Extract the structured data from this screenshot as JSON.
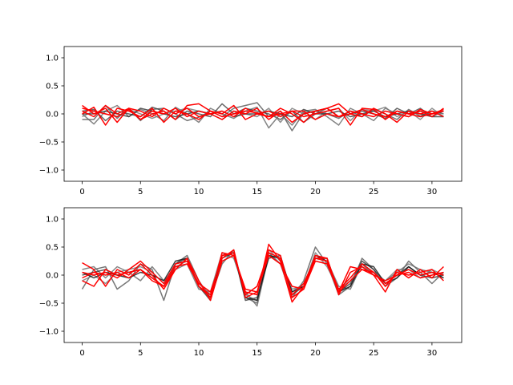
{
  "chart_data": [
    {
      "type": "line",
      "title": "",
      "xlabel": "",
      "ylabel": "",
      "xlim": [
        -1.55,
        32.55
      ],
      "ylim": [
        -1.2,
        1.2
      ],
      "xticks": [
        0,
        5,
        10,
        15,
        20,
        25,
        30
      ],
      "yticks": [
        -1.0,
        -0.5,
        0.0,
        0.5,
        1.0
      ],
      "xtick_labels": [
        "0",
        "5",
        "10",
        "15",
        "20",
        "25",
        "30"
      ],
      "ytick_labels": [
        "−1.0",
        "−0.5",
        "0.0",
        "0.5",
        "1.0"
      ],
      "grid": false,
      "x": [
        0,
        1,
        2,
        3,
        4,
        5,
        6,
        7,
        8,
        9,
        10,
        11,
        12,
        13,
        14,
        15,
        16,
        17,
        18,
        19,
        20,
        21,
        22,
        23,
        24,
        25,
        26,
        27,
        28,
        29,
        30,
        31
      ],
      "series": [
        {
          "color": "#555555",
          "values": [
            -0.1,
            -0.1,
            0.15,
            -0.08,
            0.1,
            -0.12,
            0.08,
            0.1,
            0.0,
            -0.12,
            -0.06,
            0.05,
            -0.05,
            0.1,
            0.15,
            0.2,
            -0.05,
            0.05,
            -0.3,
            0.02,
            0.05,
            0.0,
            -0.08,
            0.05,
            -0.05,
            0.08,
            0.0,
            -0.1,
            0.08,
            -0.04,
            0.05,
            0.0
          ]
        },
        {
          "color": "#666666",
          "values": [
            0.0,
            -0.18,
            0.05,
            0.15,
            -0.05,
            0.08,
            0.0,
            -0.12,
            0.12,
            0.0,
            -0.15,
            0.1,
            0.0,
            -0.08,
            0.05,
            0.12,
            -0.25,
            0.0,
            -0.2,
            0.05,
            0.08,
            -0.05,
            -0.2,
            0.1,
            0.0,
            -0.12,
            0.1,
            0.0,
            -0.05,
            0.05,
            0.0,
            0.05
          ]
        },
        {
          "color": "#444444",
          "values": [
            0.05,
            0.08,
            -0.12,
            0.05,
            0.0,
            -0.05,
            0.12,
            0.05,
            -0.1,
            0.05,
            0.0,
            -0.05,
            0.18,
            0.0,
            0.1,
            0.05,
            0.0,
            -0.1,
            0.05,
            -0.15,
            0.0,
            0.1,
            -0.05,
            0.0,
            0.05,
            0.0,
            -0.08,
            0.1,
            0.0,
            0.1,
            -0.05,
            0.05
          ]
        },
        {
          "color": "#777777",
          "values": [
            -0.05,
            0.05,
            0.0,
            -0.05,
            0.08,
            0.0,
            -0.08,
            0.0,
            0.05,
            0.1,
            0.05,
            0.0,
            -0.1,
            0.05,
            0.0,
            -0.05,
            0.1,
            -0.15,
            0.1,
            0.0,
            -0.1,
            0.05,
            0.1,
            -0.12,
            0.08,
            0.05,
            0.12,
            -0.05,
            0.05,
            -0.1,
            0.1,
            -0.05
          ]
        },
        {
          "color": "#333333",
          "values": [
            0.0,
            0.0,
            0.05,
            0.0,
            -0.05,
            0.1,
            0.05,
            0.0,
            -0.05,
            0.0,
            0.05,
            0.0,
            0.05,
            -0.05,
            0.0,
            0.0,
            0.05,
            0.0,
            -0.05,
            0.08,
            0.0,
            0.0,
            0.05,
            -0.05,
            0.0,
            0.05,
            -0.05,
            0.0,
            0.05,
            0.0,
            -0.05,
            -0.05
          ]
        },
        {
          "color": "#ff0000",
          "values": [
            0.15,
            0.0,
            0.1,
            -0.15,
            0.1,
            -0.1,
            0.0,
            0.05,
            -0.1,
            0.15,
            0.18,
            0.05,
            -0.05,
            0.0,
            0.05,
            0.02,
            -0.05,
            0.0,
            0.05,
            -0.05,
            0.0,
            0.05,
            0.1,
            -0.2,
            0.1,
            0.08,
            -0.1,
            0.05,
            0.0,
            0.05,
            -0.05,
            0.1
          ]
        },
        {
          "color": "#ff0000",
          "values": [
            0.0,
            0.12,
            -0.2,
            0.1,
            0.05,
            -0.05,
            0.1,
            -0.15,
            0.05,
            0.0,
            -0.1,
            0.05,
            0.0,
            0.15,
            -0.1,
            0.0,
            -0.05,
            0.1,
            0.0,
            -0.15,
            0.05,
            0.1,
            0.18,
            0.0,
            -0.05,
            0.1,
            0.0,
            -0.15,
            0.05,
            0.0,
            0.05,
            -0.05
          ]
        },
        {
          "color": "#ff0000",
          "values": [
            0.05,
            -0.05,
            0.15,
            0.0,
            0.1,
            0.05,
            -0.05,
            0.1,
            0.0,
            0.1,
            -0.05,
            0.0,
            0.05,
            -0.05,
            0.1,
            0.0,
            0.05,
            -0.05,
            0.05,
            0.05,
            -0.1,
            0.0,
            -0.05,
            0.05,
            0.0,
            -0.05,
            0.05,
            0.0,
            -0.05,
            0.08,
            0.0,
            0.05
          ]
        },
        {
          "color": "#ff0000",
          "values": [
            0.1,
            0.05,
            0.0,
            -0.05,
            0.08,
            -0.1,
            0.05,
            0.0,
            0.1,
            -0.05,
            0.05,
            0.0,
            -0.1,
            0.05,
            0.0,
            0.1,
            -0.1,
            0.05,
            -0.15,
            0.0,
            0.05,
            0.1,
            -0.05,
            0.0,
            0.08,
            0.0,
            -0.05,
            0.05,
            0.0,
            -0.05,
            0.0,
            0.08
          ]
        }
      ]
    },
    {
      "type": "line",
      "title": "",
      "xlabel": "",
      "ylabel": "",
      "xlim": [
        -1.55,
        32.55
      ],
      "ylim": [
        -1.2,
        1.2
      ],
      "xticks": [
        0,
        5,
        10,
        15,
        20,
        25,
        30
      ],
      "yticks": [
        -1.0,
        -0.5,
        0.0,
        0.5,
        1.0
      ],
      "xtick_labels": [
        "0",
        "5",
        "10",
        "15",
        "20",
        "25",
        "30"
      ],
      "ytick_labels": [
        "−1.0",
        "−0.5",
        "0.0",
        "0.5",
        "1.0"
      ],
      "grid": false,
      "x": [
        0,
        1,
        2,
        3,
        4,
        5,
        6,
        7,
        8,
        9,
        10,
        11,
        12,
        13,
        14,
        15,
        16,
        17,
        18,
        19,
        20,
        21,
        22,
        23,
        24,
        25,
        26,
        27,
        28,
        29,
        30,
        31
      ],
      "series": [
        {
          "color": "#555555",
          "values": [
            -0.25,
            0.1,
            0.15,
            -0.25,
            -0.1,
            0.2,
            0.1,
            -0.45,
            0.2,
            0.35,
            -0.1,
            -0.4,
            0.2,
            0.45,
            -0.4,
            -0.5,
            0.4,
            0.2,
            -0.4,
            -0.1,
            0.5,
            0.2,
            -0.35,
            -0.2,
            0.3,
            0.1,
            -0.2,
            -0.05,
            0.25,
            0.05,
            -0.15,
            0.05
          ]
        },
        {
          "color": "#666666",
          "values": [
            0.1,
            0.15,
            -0.05,
            0.15,
            0.05,
            -0.1,
            0.15,
            -0.1,
            0.1,
            0.2,
            -0.25,
            -0.3,
            0.4,
            0.3,
            -0.3,
            -0.55,
            0.35,
            0.3,
            -0.3,
            -0.15,
            0.3,
            0.25,
            -0.2,
            -0.25,
            0.2,
            0.0,
            -0.1,
            0.05,
            0.2,
            0.1,
            0.05,
            -0.05
          ]
        },
        {
          "color": "#333333",
          "values": [
            0.0,
            0.05,
            0.1,
            0.0,
            0.05,
            0.1,
            -0.05,
            -0.2,
            0.2,
            0.3,
            -0.2,
            -0.45,
            0.3,
            0.4,
            -0.45,
            -0.4,
            0.3,
            0.35,
            -0.35,
            -0.2,
            0.3,
            0.3,
            -0.3,
            -0.15,
            0.25,
            0.1,
            -0.15,
            0.0,
            0.15,
            0.0,
            -0.05,
            0.0
          ]
        },
        {
          "color": "#777777",
          "values": [
            -0.1,
            0.0,
            -0.15,
            0.05,
            0.1,
            0.15,
            0.05,
            -0.15,
            0.15,
            0.25,
            -0.15,
            -0.35,
            0.25,
            0.35,
            -0.35,
            -0.45,
            0.45,
            0.25,
            -0.25,
            -0.2,
            0.4,
            0.15,
            -0.25,
            -0.1,
            0.15,
            0.05,
            -0.1,
            0.1,
            0.1,
            -0.05,
            0.1,
            0.0
          ]
        },
        {
          "color": "#111111",
          "values": [
            0.05,
            -0.05,
            0.05,
            0.0,
            -0.05,
            0.05,
            0.0,
            -0.1,
            0.25,
            0.3,
            -0.2,
            -0.4,
            0.35,
            0.4,
            -0.4,
            -0.45,
            0.35,
            0.3,
            -0.3,
            -0.2,
            0.35,
            0.25,
            -0.3,
            -0.2,
            0.2,
            0.15,
            -0.15,
            -0.05,
            0.15,
            0.0,
            0.05,
            -0.05
          ]
        },
        {
          "color": "#ff0000",
          "values": [
            0.22,
            0.1,
            -0.2,
            0.1,
            0.0,
            0.2,
            0.0,
            -0.25,
            0.1,
            0.3,
            -0.2,
            -0.4,
            0.4,
            0.35,
            -0.3,
            -0.35,
            0.55,
            0.25,
            -0.48,
            -0.2,
            0.35,
            0.3,
            -0.35,
            0.05,
            0.15,
            0.0,
            -0.3,
            0.1,
            -0.05,
            0.1,
            -0.05,
            0.15
          ]
        },
        {
          "color": "#ff0000",
          "values": [
            -0.1,
            -0.2,
            0.1,
            0.0,
            0.05,
            0.1,
            -0.05,
            -0.2,
            0.15,
            0.2,
            -0.15,
            -0.3,
            0.3,
            0.45,
            -0.4,
            -0.3,
            0.45,
            0.35,
            -0.4,
            -0.25,
            0.25,
            0.2,
            -0.3,
            0.15,
            0.1,
            0.05,
            -0.2,
            0.05,
            0.0,
            0.05,
            0.1,
            -0.1
          ]
        },
        {
          "color": "#ff0000",
          "values": [
            0.05,
            0.0,
            0.05,
            -0.05,
            0.1,
            0.25,
            0.05,
            -0.15,
            0.2,
            0.25,
            -0.2,
            -0.35,
            0.35,
            0.4,
            -0.35,
            -0.2,
            0.4,
            0.3,
            -0.35,
            -0.15,
            0.3,
            0.25,
            -0.25,
            -0.05,
            0.2,
            0.05,
            -0.15,
            0.0,
            0.05,
            -0.05,
            0.0,
            0.05
          ]
        },
        {
          "color": "#ff0000",
          "values": [
            -0.05,
            0.05,
            0.0,
            0.05,
            -0.05,
            0.1,
            -0.1,
            -0.2,
            0.1,
            0.3,
            -0.1,
            -0.45,
            0.25,
            0.35,
            -0.25,
            -0.3,
            0.35,
            0.2,
            -0.2,
            -0.25,
            0.3,
            0.3,
            -0.3,
            -0.1,
            0.1,
            0.0,
            -0.1,
            0.0,
            0.1,
            0.0,
            0.05,
            0.0
          ]
        }
      ]
    }
  ]
}
